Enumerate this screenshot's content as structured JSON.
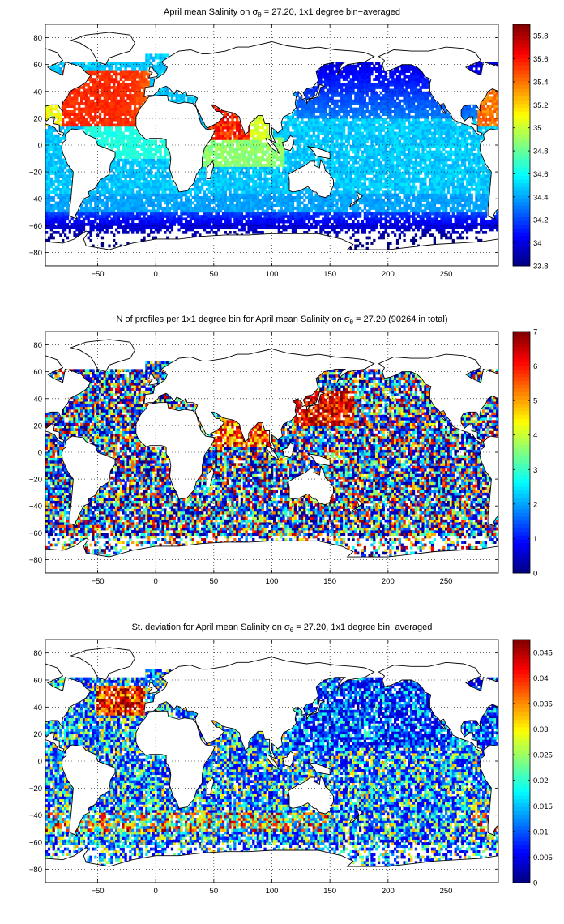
{
  "chart_data": [
    {
      "type": "heatmap",
      "title_main": "April mean Salinity on σ",
      "title_sub": "θ",
      "title_rest": " = 27.20, 1x1 degree bin−averaged",
      "x_ticks": [
        -50,
        0,
        50,
        100,
        150,
        200,
        250
      ],
      "y_ticks": [
        -80,
        -60,
        -40,
        -20,
        0,
        20,
        40,
        60,
        80
      ],
      "xlim": [
        -95,
        295
      ],
      "ylim": [
        -90,
        90
      ],
      "grid": true,
      "colorbar": {
        "min": 33.8,
        "max": 35.9,
        "ticks": [
          "33.8",
          "34",
          "34.2",
          "34.4",
          "34.6",
          "34.8",
          "35",
          "35.2",
          "35.4",
          "35.6",
          "35.8"
        ],
        "tick_values": [
          33.8,
          34.0,
          34.2,
          34.4,
          34.6,
          34.8,
          35.0,
          35.2,
          35.4,
          35.6,
          35.8
        ]
      },
      "colormap": "jet",
      "field": "salinity"
    },
    {
      "type": "heatmap",
      "title_main": "N of profiles per 1x1 degree bin for April mean Salinity on σ",
      "title_sub": "θ",
      "title_rest": " = 27.20 (90264 in total)",
      "x_ticks": [
        -50,
        0,
        50,
        100,
        150,
        200,
        250
      ],
      "y_ticks": [
        -80,
        -60,
        -40,
        -20,
        0,
        20,
        40,
        60,
        80
      ],
      "xlim": [
        -95,
        295
      ],
      "ylim": [
        -90,
        90
      ],
      "grid": true,
      "colorbar": {
        "min": 0,
        "max": 7,
        "ticks": [
          "0",
          "1",
          "2",
          "3",
          "4",
          "5",
          "6",
          "7"
        ],
        "tick_values": [
          0,
          1,
          2,
          3,
          4,
          5,
          6,
          7
        ]
      },
      "colormap": "jet",
      "field": "count"
    },
    {
      "type": "heatmap",
      "title_main": "St. deviation for April mean Salinity on σ",
      "title_sub": "θ",
      "title_rest": " = 27.20, 1x1 degree bin−averaged",
      "x_ticks": [
        -50,
        0,
        50,
        100,
        150,
        200,
        250
      ],
      "y_ticks": [
        -80,
        -60,
        -40,
        -20,
        0,
        20,
        40,
        60,
        80
      ],
      "xlim": [
        -95,
        295
      ],
      "ylim": [
        -90,
        90
      ],
      "grid": true,
      "colorbar": {
        "min": 0,
        "max": 0.0475,
        "ticks": [
          "0",
          "0.005",
          "0.01",
          "0.015",
          "0.02",
          "0.025",
          "0.03",
          "0.035",
          "0.04",
          "0.045"
        ],
        "tick_values": [
          0,
          0.005,
          0.01,
          0.015,
          0.02,
          0.025,
          0.03,
          0.035,
          0.04,
          0.045
        ]
      },
      "colormap": "jet",
      "field": "stdev"
    }
  ]
}
